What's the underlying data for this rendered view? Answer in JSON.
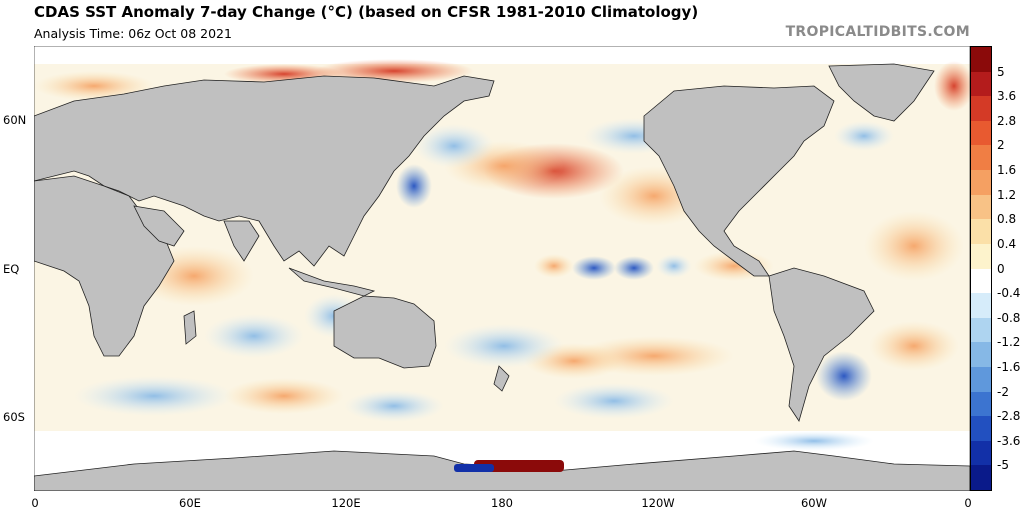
{
  "header": {
    "title": "CDAS SST Anomaly 7-day Change (°C) (based on CFSR 1981-2010 Climatology)",
    "analysis_time": "Analysis Time: 06z Oct 08 2021",
    "credit": "TROPICALTIDBITS.COM"
  },
  "map": {
    "projection": "cylindrical equidistant, 0-360 longitude",
    "land_color": "#c0c0c0",
    "lat_labels": [
      "60N",
      "EQ",
      "60S"
    ],
    "lon_labels": [
      "0",
      "60E",
      "120E",
      "180",
      "120W",
      "60W",
      "0"
    ]
  },
  "colorbar": {
    "labels": [
      "5",
      "3.6",
      "2.8",
      "2",
      "1.6",
      "1.2",
      "0.8",
      "0.4",
      "0",
      "-0.4",
      "-0.8",
      "-1.2",
      "-1.6",
      "-2",
      "-2.8",
      "-3.6",
      "-5"
    ],
    "colors": [
      "#8b0a0a",
      "#b41c1c",
      "#d43a26",
      "#e85a30",
      "#f07e44",
      "#f5a062",
      "#f8c286",
      "#fbe0a8",
      "#fdf3cc",
      "#ffffff",
      "#d6ecfa",
      "#aed4f0",
      "#86b8e6",
      "#5f98dc",
      "#3c74d0",
      "#2250c0",
      "#1230a8",
      "#0a1a8a"
    ]
  }
}
